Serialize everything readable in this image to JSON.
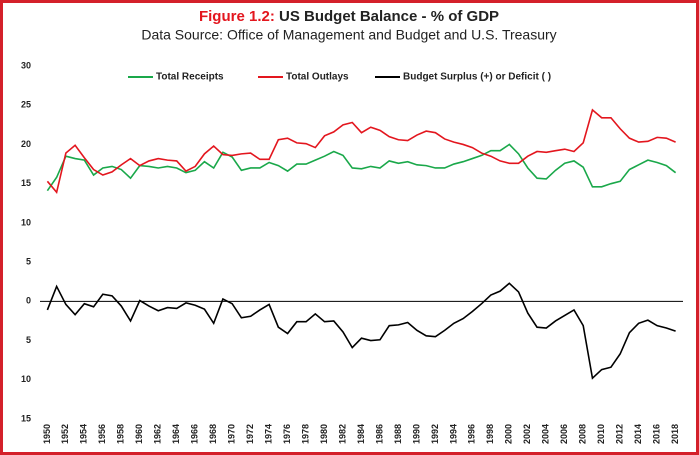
{
  "chart_data": {
    "type": "line",
    "figure_label": "Figure 1.2:",
    "title": "US Budget Balance - % of GDP",
    "subtitle": "Data Source: Office of Management and Budget and U.S. Treasury",
    "x": [
      1950,
      1951,
      1952,
      1953,
      1954,
      1955,
      1956,
      1957,
      1958,
      1959,
      1960,
      1961,
      1962,
      1963,
      1964,
      1965,
      1966,
      1967,
      1968,
      1969,
      1970,
      1971,
      1972,
      1973,
      1974,
      1975,
      1976,
      1977,
      1978,
      1979,
      1980,
      1981,
      1982,
      1983,
      1984,
      1985,
      1986,
      1987,
      1988,
      1989,
      1990,
      1991,
      1992,
      1993,
      1994,
      1995,
      1996,
      1997,
      1998,
      1999,
      2000,
      2001,
      2002,
      2003,
      2004,
      2005,
      2006,
      2007,
      2008,
      2009,
      2010,
      2011,
      2012,
      2013,
      2014,
      2015,
      2016,
      2017,
      2018
    ],
    "xlim": [
      1949.2,
      2018.8
    ],
    "xticks": [
      1950,
      1952,
      1954,
      1956,
      1958,
      1960,
      1962,
      1964,
      1966,
      1968,
      1970,
      1972,
      1974,
      1976,
      1978,
      1980,
      1982,
      1984,
      1986,
      1988,
      1990,
      1992,
      1994,
      1996,
      1998,
      2000,
      2002,
      2004,
      2006,
      2008,
      2010,
      2012,
      2014,
      2016,
      2018
    ],
    "ylim": [
      -15,
      30
    ],
    "yticks": [
      30,
      25,
      20,
      15,
      10,
      5,
      0,
      {
        "value": -5,
        "label": "5"
      },
      {
        "value": -10,
        "label": "10"
      },
      {
        "value": -15,
        "label": "15"
      }
    ],
    "zero_line": true,
    "legend": "top",
    "series": [
      {
        "name": "Total Receipts",
        "color": "#1aa84a",
        "values": [
          14.1,
          15.8,
          18.5,
          18.2,
          18.0,
          16.1,
          17.0,
          17.2,
          16.8,
          15.7,
          17.3,
          17.2,
          17.0,
          17.2,
          17.0,
          16.4,
          16.7,
          17.8,
          17.0,
          19.0,
          18.4,
          16.7,
          17.0,
          17.0,
          17.7,
          17.3,
          16.6,
          17.5,
          17.5,
          18.0,
          18.5,
          19.1,
          18.6,
          17.0,
          16.9,
          17.2,
          17.0,
          17.9,
          17.6,
          17.8,
          17.4,
          17.3,
          17.0,
          17.0,
          17.5,
          17.8,
          18.2,
          18.6,
          19.2,
          19.2,
          20.0,
          18.8,
          17.0,
          15.7,
          15.6,
          16.7,
          17.6,
          17.9,
          17.1,
          14.6,
          14.6,
          15.0,
          15.3,
          16.8,
          17.4,
          18.0,
          17.7,
          17.3,
          16.4
        ]
      },
      {
        "name": "Total Outlays",
        "color": "#e3161e",
        "values": [
          15.3,
          13.9,
          18.9,
          19.9,
          18.3,
          16.8,
          16.1,
          16.5,
          17.4,
          18.2,
          17.3,
          17.9,
          18.2,
          18.0,
          17.9,
          16.6,
          17.2,
          18.8,
          19.8,
          18.7,
          18.6,
          18.8,
          18.9,
          18.1,
          18.1,
          20.6,
          20.8,
          20.2,
          20.1,
          19.6,
          21.1,
          21.6,
          22.5,
          22.8,
          21.5,
          22.2,
          21.8,
          21.0,
          20.6,
          20.5,
          21.2,
          21.7,
          21.5,
          20.7,
          20.3,
          20.0,
          19.6,
          18.9,
          18.5,
          17.9,
          17.6,
          17.6,
          18.5,
          19.1,
          19.0,
          19.2,
          19.4,
          19.1,
          20.2,
          24.4,
          23.4,
          23.4,
          22.0,
          20.8,
          20.3,
          20.4,
          20.9,
          20.8,
          20.3
        ]
      },
      {
        "name": "Budget Surplus (+) or Deficit ( )",
        "color": "#000000",
        "values": [
          -1.1,
          1.9,
          -0.4,
          -1.7,
          -0.3,
          -0.7,
          0.9,
          0.7,
          -0.6,
          -2.5,
          0.1,
          -0.6,
          -1.2,
          -0.8,
          -0.9,
          -0.2,
          -0.5,
          -1.0,
          -2.8,
          0.3,
          -0.3,
          -2.1,
          -1.9,
          -1.1,
          -0.4,
          -3.3,
          -4.1,
          -2.6,
          -2.6,
          -1.6,
          -2.6,
          -2.5,
          -3.9,
          -5.9,
          -4.7,
          -5.0,
          -4.9,
          -3.1,
          -3.0,
          -2.7,
          -3.7,
          -4.4,
          -4.5,
          -3.7,
          -2.8,
          -2.2,
          -1.3,
          -0.3,
          0.8,
          1.3,
          2.3,
          1.2,
          -1.5,
          -3.3,
          -3.4,
          -2.5,
          -1.8,
          -1.1,
          -3.1,
          -9.8,
          -8.7,
          -8.4,
          -6.7,
          -4.0,
          -2.8,
          -2.4,
          -3.1,
          -3.4,
          -3.8
        ]
      }
    ]
  }
}
